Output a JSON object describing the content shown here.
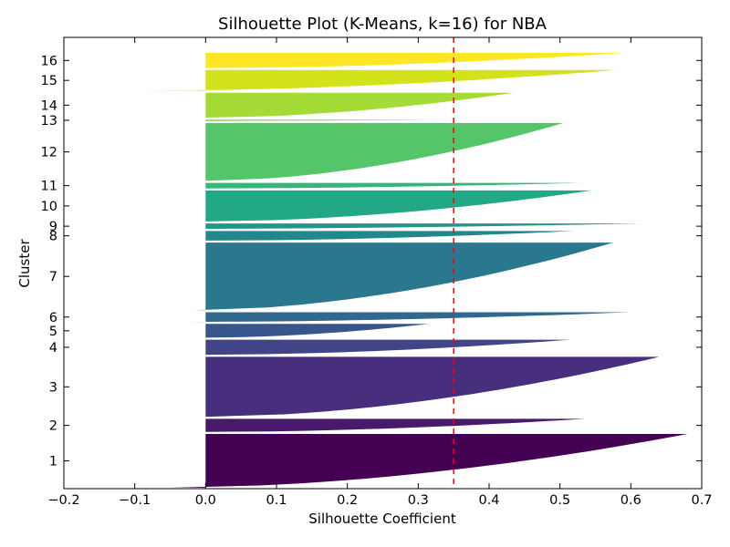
{
  "chart_data": {
    "type": "silhouette",
    "title": "Silhouette Plot (K-Means, k=16) for NBA",
    "xlabel": "Silhouette Coefficient",
    "ylabel": "Cluster",
    "xlim": [
      -0.2,
      0.7
    ],
    "x_ticks": [
      "−0.2",
      "−0.1",
      "0.0",
      "0.1",
      "0.2",
      "0.3",
      "0.4",
      "0.5",
      "0.6",
      "0.7"
    ],
    "x_tick_values": [
      -0.2,
      -0.1,
      0.0,
      0.1,
      0.2,
      0.3,
      0.4,
      0.5,
      0.6,
      0.7
    ],
    "grid": false,
    "average_silhouette": 0.35,
    "average_line_color": "#ff0000",
    "clusters": [
      {
        "label": "1",
        "size": 78,
        "min": -0.05,
        "max": 0.68,
        "color": "#440154"
      },
      {
        "label": "2",
        "size": 19,
        "min": 0.0,
        "max": 0.535,
        "color": "#481a6c"
      },
      {
        "label": "3",
        "size": 87,
        "min": 0.0,
        "max": 0.64,
        "color": "#472f7d"
      },
      {
        "label": "4",
        "size": 22,
        "min": -0.005,
        "max": 0.515,
        "color": "#414487"
      },
      {
        "label": "5",
        "size": 20,
        "min": 0.0,
        "max": 0.315,
        "color": "#39568c"
      },
      {
        "label": "6",
        "size": 14,
        "min": -0.025,
        "max": 0.6,
        "color": "#31688e"
      },
      {
        "label": "7",
        "size": 98,
        "min": -0.015,
        "max": 0.575,
        "color": "#2a788e"
      },
      {
        "label": "8",
        "size": 14,
        "min": 0.0,
        "max": 0.52,
        "color": "#23888e"
      },
      {
        "label": "9",
        "size": 8,
        "min": -0.07,
        "max": 0.615,
        "color": "#1f988b"
      },
      {
        "label": "10",
        "size": 45,
        "min": 0.0,
        "max": 0.545,
        "color": "#22a884"
      },
      {
        "label": "11",
        "size": 8,
        "min": -0.005,
        "max": 0.53,
        "color": "#35b779"
      },
      {
        "label": "12",
        "size": 84,
        "min": 0.0,
        "max": 0.505,
        "color": "#54c568"
      },
      {
        "label": "13",
        "size": 2,
        "min": -0.04,
        "max": 0.35,
        "color": "#7ad151"
      },
      {
        "label": "14",
        "size": 36,
        "min": 0.0,
        "max": 0.435,
        "color": "#a5db36"
      },
      {
        "label": "15",
        "size": 30,
        "min": -0.085,
        "max": 0.58,
        "color": "#d2e21b"
      },
      {
        "label": "16",
        "size": 22,
        "min": 0.0,
        "max": 0.59,
        "color": "#fde725"
      }
    ]
  }
}
